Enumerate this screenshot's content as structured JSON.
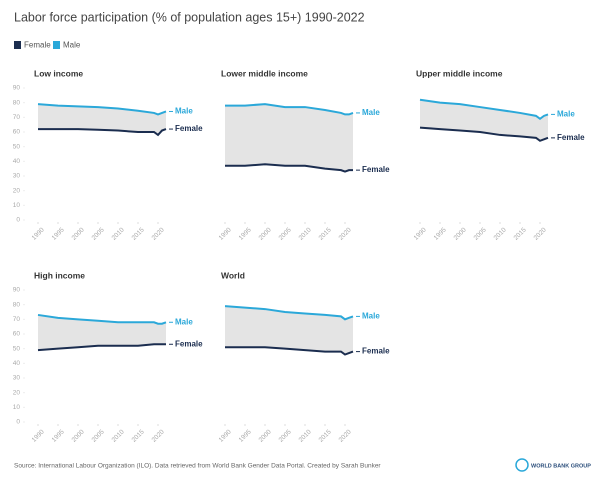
{
  "title": "Labor force participation (% of population ages 15+) 1990-2022",
  "source": "Source: International Labour Organization (ILO). Data retrieved from World Bank Gender Data Portal. Created by Sarah Bunker",
  "logo": "WORLD BANK GROUP",
  "chart_data": [
    {
      "type": "line",
      "title": "Low income",
      "x": [
        1990,
        1995,
        2000,
        2005,
        2010,
        2015,
        2019,
        2020,
        2021,
        2022
      ],
      "xlim": [
        1990,
        2022
      ],
      "xticks": [
        1990,
        1995,
        2000,
        2005,
        2010,
        2015,
        2020
      ],
      "ylim": [
        0,
        90
      ],
      "yticks": [
        0,
        10,
        20,
        30,
        40,
        50,
        60,
        70,
        80,
        90
      ],
      "series": [
        {
          "name": "Female",
          "color": "#1b2d4f",
          "values": [
            62,
            62,
            62,
            61.5,
            61,
            60,
            60,
            58,
            61,
            62
          ]
        },
        {
          "name": "Male",
          "color": "#2ba8d9",
          "values": [
            79,
            78,
            77.5,
            77,
            76,
            74.5,
            73,
            72,
            73,
            74
          ]
        }
      ]
    },
    {
      "type": "line",
      "title": "Lower middle income",
      "x": [
        1990,
        1995,
        2000,
        2005,
        2010,
        2015,
        2019,
        2020,
        2021,
        2022
      ],
      "xlim": [
        1990,
        2022
      ],
      "xticks": [
        1990,
        1995,
        2000,
        2005,
        2010,
        2015,
        2020
      ],
      "ylim": [
        0,
        90
      ],
      "series": [
        {
          "name": "Female",
          "color": "#1b2d4f",
          "values": [
            37,
            37,
            38,
            37,
            37,
            35,
            34,
            33,
            34,
            34
          ]
        },
        {
          "name": "Male",
          "color": "#2ba8d9",
          "values": [
            78,
            78,
            79,
            77,
            77,
            75,
            73,
            72,
            72,
            73
          ]
        }
      ]
    },
    {
      "type": "line",
      "title": "Upper middle income",
      "x": [
        1990,
        1995,
        2000,
        2005,
        2010,
        2015,
        2019,
        2020,
        2021,
        2022
      ],
      "xlim": [
        1990,
        2022
      ],
      "xticks": [
        1990,
        1995,
        2000,
        2005,
        2010,
        2015,
        2020
      ],
      "ylim": [
        0,
        90
      ],
      "series": [
        {
          "name": "Female",
          "color": "#1b2d4f",
          "values": [
            63,
            62,
            61,
            60,
            58,
            57,
            56,
            54,
            55,
            56
          ]
        },
        {
          "name": "Male",
          "color": "#2ba8d9",
          "values": [
            82,
            80,
            79,
            77,
            75,
            73,
            71,
            69,
            71,
            72
          ]
        }
      ]
    },
    {
      "type": "line",
      "title": "High income",
      "x": [
        1990,
        1995,
        2000,
        2005,
        2010,
        2015,
        2019,
        2020,
        2021,
        2022
      ],
      "xlim": [
        1990,
        2022
      ],
      "xticks": [
        1990,
        1995,
        2000,
        2005,
        2010,
        2015,
        2020
      ],
      "ylim": [
        0,
        90
      ],
      "yticks": [
        0,
        10,
        20,
        30,
        40,
        50,
        60,
        70,
        80,
        90
      ],
      "series": [
        {
          "name": "Female",
          "color": "#1b2d4f",
          "values": [
            49,
            50,
            51,
            52,
            52,
            52,
            53,
            53,
            53,
            53
          ]
        },
        {
          "name": "Male",
          "color": "#2ba8d9",
          "values": [
            73,
            71,
            70,
            69,
            68,
            68,
            68,
            67,
            67,
            68
          ]
        }
      ]
    },
    {
      "type": "line",
      "title": "World",
      "x": [
        1990,
        1995,
        2000,
        2005,
        2010,
        2015,
        2019,
        2020,
        2021,
        2022
      ],
      "xlim": [
        1990,
        2022
      ],
      "xticks": [
        1990,
        1995,
        2000,
        2005,
        2010,
        2015,
        2020
      ],
      "ylim": [
        0,
        90
      ],
      "series": [
        {
          "name": "Female",
          "color": "#1b2d4f",
          "values": [
            51,
            51,
            51,
            50,
            49,
            48,
            48,
            46,
            47,
            48
          ]
        },
        {
          "name": "Male",
          "color": "#2ba8d9",
          "values": [
            79,
            78,
            77,
            75,
            74,
            73,
            72,
            70,
            71,
            72
          ]
        }
      ]
    }
  ]
}
